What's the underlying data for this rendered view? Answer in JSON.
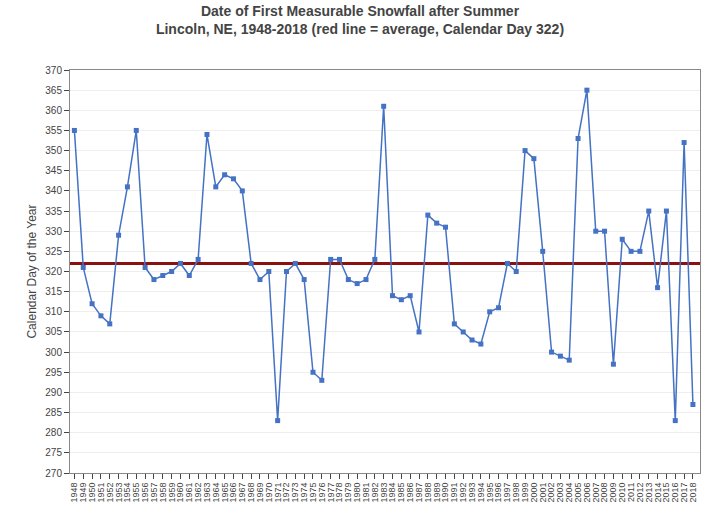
{
  "chart_data": {
    "type": "line",
    "title": "Date of First Measurable Snowfall after Summer",
    "subtitle": "Lincoln, NE, 1948-2018 (red line = average, Calendar Day 322)",
    "y_label": "Calendar Day of the Year",
    "x": [
      1948,
      1949,
      1950,
      1951,
      1952,
      1953,
      1954,
      1955,
      1956,
      1957,
      1958,
      1959,
      1960,
      1961,
      1962,
      1963,
      1964,
      1965,
      1966,
      1967,
      1968,
      1969,
      1970,
      1971,
      1972,
      1973,
      1974,
      1975,
      1976,
      1977,
      1978,
      1979,
      1980,
      1981,
      1982,
      1983,
      1984,
      1985,
      1986,
      1987,
      1988,
      1989,
      1990,
      1991,
      1992,
      1993,
      1994,
      1995,
      1996,
      1997,
      1998,
      1999,
      2000,
      2001,
      2002,
      2003,
      2004,
      2005,
      2006,
      2007,
      2008,
      2009,
      2010,
      2011,
      2012,
      2013,
      2014,
      2015,
      2016,
      2017,
      2018
    ],
    "values": [
      355,
      321,
      312,
      309,
      307,
      329,
      341,
      355,
      321,
      318,
      319,
      320,
      322,
      319,
      323,
      354,
      341,
      344,
      343,
      340,
      322,
      318,
      320,
      283,
      320,
      322,
      318,
      295,
      293,
      323,
      323,
      318,
      317,
      318,
      323,
      361,
      314,
      313,
      314,
      305,
      334,
      332,
      331,
      307,
      305,
      303,
      302,
      310,
      311,
      322,
      320,
      350,
      348,
      325,
      300,
      299,
      298,
      353,
      365,
      330,
      330,
      297,
      328,
      325,
      325,
      335,
      316,
      335,
      283,
      352,
      287
    ],
    "color": "#4472C4",
    "marker": "square",
    "average": {
      "value": 322,
      "color": "#8B1010"
    },
    "xlim": [
      1947.5,
      2018.8
    ],
    "xticks": [
      1948,
      1949,
      1950,
      1951,
      1952,
      1953,
      1954,
      1955,
      1956,
      1957,
      1958,
      1959,
      1960,
      1961,
      1962,
      1963,
      1964,
      1965,
      1966,
      1967,
      1968,
      1969,
      1970,
      1971,
      1972,
      1973,
      1974,
      1975,
      1976,
      1977,
      1978,
      1979,
      1980,
      1981,
      1982,
      1983,
      1984,
      1985,
      1986,
      1987,
      1988,
      1989,
      1990,
      1991,
      1992,
      1993,
      1994,
      1995,
      1996,
      1997,
      1998,
      1999,
      2000,
      2001,
      2002,
      2003,
      2004,
      2005,
      2006,
      2007,
      2008,
      2009,
      2010,
      2011,
      2012,
      2013,
      2014,
      2015,
      2016,
      2017,
      2018
    ],
    "ylim": [
      270,
      370
    ],
    "yticks": [
      270,
      275,
      280,
      285,
      290,
      295,
      300,
      305,
      310,
      315,
      320,
      325,
      330,
      335,
      340,
      345,
      350,
      355,
      360,
      365,
      370
    ],
    "grid": "y"
  }
}
